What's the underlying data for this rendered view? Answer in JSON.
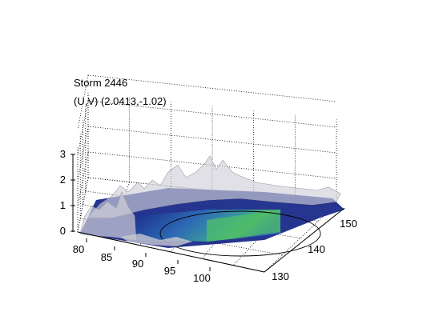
{
  "chart_data": {
    "type": "surface",
    "title_lines": [
      "Storm 2446",
      "(U,V) (2.0413,-1.02)"
    ],
    "x_ticks": [
      "80",
      "85",
      "90",
      "95",
      "100"
    ],
    "y_ticks": [
      "130",
      "140",
      "150"
    ],
    "z_ticks": [
      "0",
      "1",
      "2",
      "3"
    ],
    "zlim": [
      0,
      3.3
    ],
    "grid": true,
    "colormap": [
      "#1a2a8a",
      "#2f6fb8",
      "#3aa0a0",
      "#4fbf6a",
      "#9bd35a"
    ],
    "surface_color": "#d0d0d8"
  }
}
